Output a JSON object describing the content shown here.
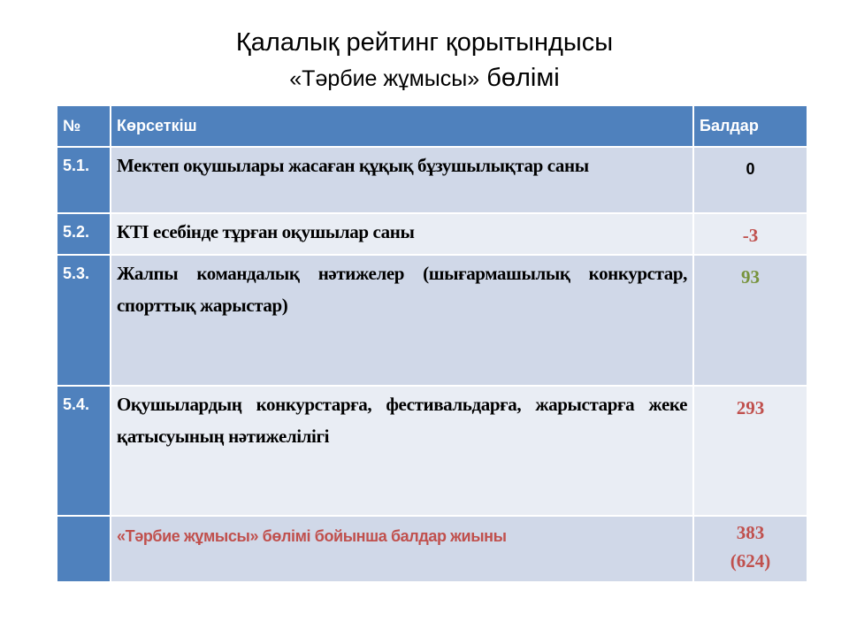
{
  "title": {
    "line1": "Қалалық рейтинг қорытындысы",
    "line2_a": "«Тәрбие жұмысы»",
    "line2_b": " бөлімі"
  },
  "table": {
    "headers": [
      "№",
      "Көрсеткіш",
      "Балдар"
    ],
    "rows": [
      {
        "no": "5.1.",
        "label": "Мектеп оқушылары жасаған құқық бұзушылықтар саны",
        "value": "0"
      },
      {
        "no": "5.2.",
        "label": "КТІ есебінде тұрған оқушылар саны",
        "value": "-3"
      },
      {
        "no": "5.3.",
        "label": "Жалпы командалық нәтижелер (шығармашылық конкурстар, спорттық жарыстар)",
        "value": "93"
      },
      {
        "no": "5.4.",
        "label": "Оқушылардың конкурстарға, фестивальдарға, жарыстарға жеке қатысуының нәтижелілігі",
        "value": "293"
      }
    ],
    "total": {
      "label": "«Тәрбие жұмысы» бөлімі бойынша балдар жиыны",
      "value": "383",
      "value_sub": "(624)"
    }
  },
  "colors": {
    "header": "#4F81BD",
    "red": "#C0504D",
    "green": "#77933C"
  }
}
